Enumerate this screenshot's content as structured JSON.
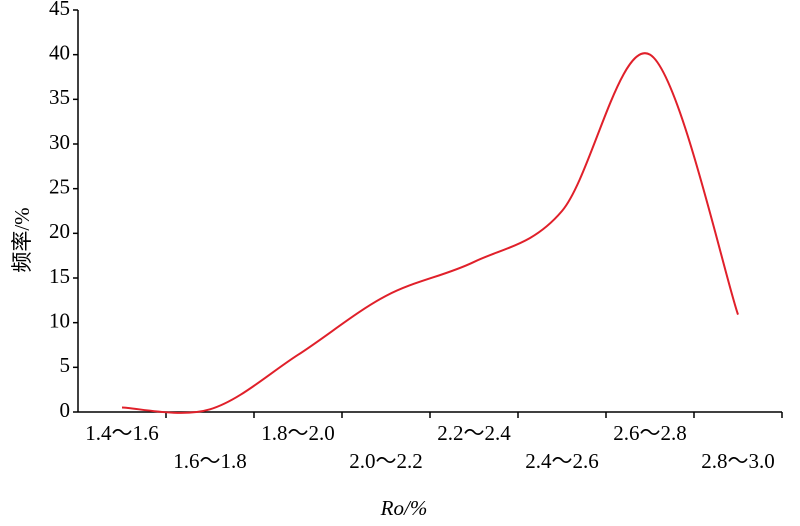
{
  "chart_data": {
    "type": "line",
    "xlabel": "Ro/%",
    "ylabel": "频率/%",
    "categories": [
      "1.4～1.6",
      "1.6～1.8",
      "1.8～2.0",
      "2.0～2.2",
      "2.2～2.4",
      "2.4～2.6",
      "2.6～2.8",
      "2.8～3.0"
    ],
    "series": [
      {
        "name": "频率",
        "color": "#e0202a",
        "values": [
          0.5,
          0.3,
          6.4,
          13,
          16.8,
          22.5,
          40,
          10.9
        ]
      }
    ],
    "ylim": [
      0,
      45
    ],
    "yticks": [
      0,
      5,
      10,
      15,
      20,
      25,
      30,
      35,
      40,
      45
    ]
  }
}
